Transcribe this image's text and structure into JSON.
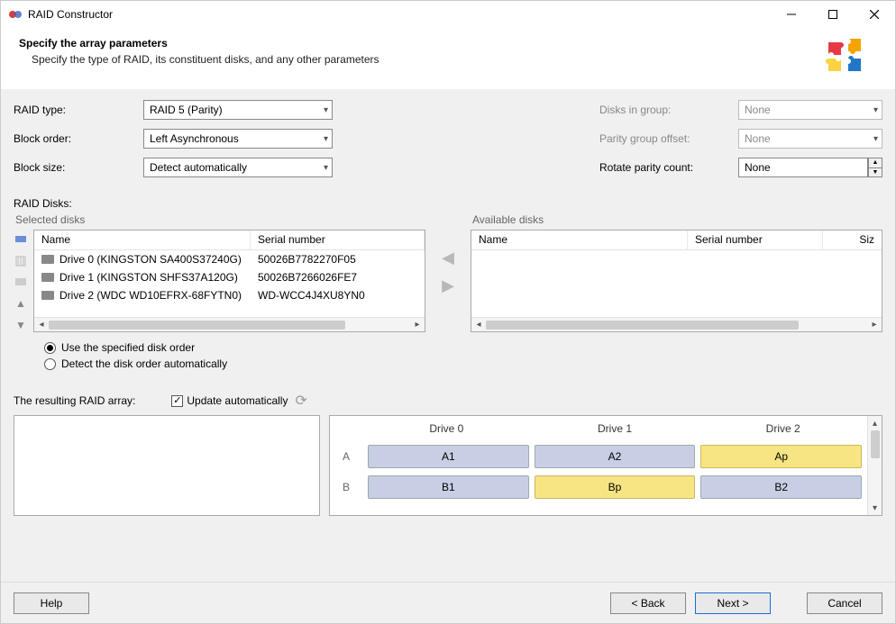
{
  "window": {
    "title": "RAID Constructor"
  },
  "header": {
    "title": "Specify the array parameters",
    "subtitle": "Specify the type of RAID, its constituent disks, and any other parameters"
  },
  "params": {
    "raid_type": {
      "label": "RAID type:",
      "value": "RAID 5 (Parity)"
    },
    "block_order": {
      "label": "Block order:",
      "value": "Left Asynchronous"
    },
    "block_size": {
      "label": "Block size:",
      "value": "Detect automatically"
    },
    "disks_in_group": {
      "label": "Disks in group:",
      "value": "None"
    },
    "parity_group_offset": {
      "label": "Parity group offset:",
      "value": "None"
    },
    "rotate_parity_count": {
      "label": "Rotate parity count:",
      "value": "None"
    }
  },
  "raid_disks_label": "RAID Disks:",
  "selected_disks": {
    "title": "Selected disks",
    "columns": {
      "name": "Name",
      "serial": "Serial number"
    },
    "rows": [
      {
        "name": "Drive 0 (KINGSTON SA400S37240G)",
        "serial": "50026B7782270F05"
      },
      {
        "name": "Drive 1 (KINGSTON SHFS37A120G)",
        "serial": "50026B7266026FE7"
      },
      {
        "name": "Drive 2 (WDC WD10EFRX-68FYTN0)",
        "serial": "WD-WCC4J4XU8YN0"
      }
    ]
  },
  "available_disks": {
    "title": "Available disks",
    "columns": {
      "name": "Name",
      "serial": "Serial number",
      "size": "Siz"
    },
    "rows": []
  },
  "order_options": {
    "specified": "Use the specified disk order",
    "auto": "Detect the disk order automatically",
    "selected": "specified"
  },
  "result": {
    "label": "The resulting RAID array:",
    "update_auto": "Update automatically"
  },
  "preview": {
    "columns": [
      "Drive 0",
      "Drive 1",
      "Drive 2"
    ],
    "rows": [
      {
        "label": "A",
        "cells": [
          {
            "t": "A1",
            "c": "blue"
          },
          {
            "t": "A2",
            "c": "blue"
          },
          {
            "t": "Ap",
            "c": "yellow"
          }
        ]
      },
      {
        "label": "B",
        "cells": [
          {
            "t": "B1",
            "c": "blue"
          },
          {
            "t": "Bp",
            "c": "yellow"
          },
          {
            "t": "B2",
            "c": "blue"
          }
        ]
      }
    ]
  },
  "footer": {
    "help": "Help",
    "back": "< Back",
    "next": "Next >",
    "cancel": "Cancel"
  },
  "colors": {
    "cell_blue": "#c8cfe4",
    "cell_yellow": "#f7e583",
    "body_bg": "#f0f0f0"
  }
}
